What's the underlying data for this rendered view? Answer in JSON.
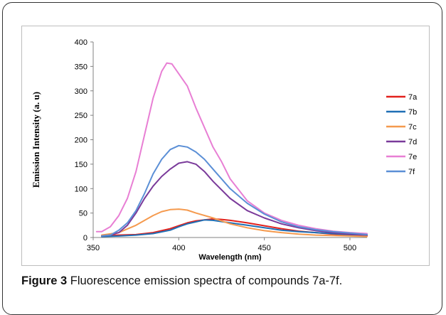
{
  "figure": {
    "caption_label": "Figure 3",
    "caption_text": "Fluorescence emission spectra of compounds 7a-7f."
  },
  "chart_data": {
    "type": "line",
    "title": "",
    "xlabel": "Wavelength (nm)",
    "ylabel": "Emission Intensity (a. u)",
    "xlim": [
      350,
      510
    ],
    "ylim": [
      0,
      400
    ],
    "xticks": [
      350,
      400,
      450,
      500
    ],
    "yticks": [
      0,
      50,
      100,
      150,
      200,
      250,
      300,
      350,
      400
    ],
    "grid": false,
    "legend": "right",
    "series": [
      {
        "name": "7a",
        "color": "#e2211c",
        "x": [
          355,
          365,
          375,
          385,
          395,
          400,
          405,
          410,
          415,
          420,
          425,
          430,
          440,
          450,
          460,
          470,
          480,
          490,
          500,
          510
        ],
        "y": [
          4,
          5,
          6,
          10,
          18,
          24,
          30,
          34,
          36,
          38,
          37,
          35,
          30,
          24,
          18,
          13,
          10,
          7,
          5,
          4
        ]
      },
      {
        "name": "7b",
        "color": "#1f6fb5",
        "x": [
          355,
          365,
          375,
          385,
          395,
          400,
          405,
          410,
          415,
          420,
          430,
          440,
          450,
          460,
          470,
          480,
          490,
          500,
          510
        ],
        "y": [
          2,
          3,
          5,
          8,
          15,
          22,
          28,
          32,
          36,
          35,
          30,
          25,
          20,
          15,
          12,
          10,
          8,
          6,
          5
        ]
      },
      {
        "name": "7c",
        "color": "#f59a4e",
        "x": [
          355,
          365,
          375,
          385,
          390,
          395,
          400,
          405,
          410,
          420,
          430,
          440,
          450,
          460,
          470,
          480,
          490,
          500,
          510
        ],
        "y": [
          5,
          10,
          25,
          45,
          53,
          57,
          58,
          56,
          50,
          40,
          28,
          20,
          14,
          10,
          7,
          5,
          4,
          3,
          2
        ]
      },
      {
        "name": "7d",
        "color": "#7a3a9a",
        "x": [
          355,
          360,
          365,
          370,
          375,
          380,
          385,
          390,
          395,
          400,
          405,
          410,
          415,
          420,
          430,
          440,
          450,
          460,
          470,
          480,
          490,
          500,
          510
        ],
        "y": [
          3,
          5,
          10,
          25,
          50,
          80,
          105,
          125,
          140,
          152,
          155,
          150,
          135,
          115,
          80,
          55,
          40,
          28,
          20,
          14,
          10,
          7,
          5
        ]
      },
      {
        "name": "7e",
        "color": "#e87fd4",
        "x": [
          352,
          355,
          360,
          365,
          370,
          375,
          380,
          385,
          390,
          393,
          396,
          400,
          405,
          410,
          415,
          420,
          425,
          430,
          440,
          450,
          460,
          470,
          480,
          490,
          500,
          510
        ],
        "y": [
          12,
          12,
          22,
          45,
          80,
          135,
          210,
          285,
          340,
          357,
          355,
          335,
          310,
          265,
          225,
          185,
          155,
          120,
          75,
          50,
          35,
          25,
          18,
          13,
          10,
          8
        ]
      },
      {
        "name": "7f",
        "color": "#5b8fd6",
        "x": [
          355,
          360,
          365,
          370,
          375,
          380,
          385,
          390,
          395,
          400,
          405,
          410,
          415,
          420,
          430,
          440,
          450,
          460,
          470,
          480,
          490,
          500,
          510
        ],
        "y": [
          3,
          5,
          15,
          30,
          55,
          90,
          130,
          160,
          180,
          188,
          185,
          175,
          160,
          140,
          100,
          70,
          48,
          32,
          22,
          16,
          12,
          9,
          6
        ]
      }
    ]
  }
}
